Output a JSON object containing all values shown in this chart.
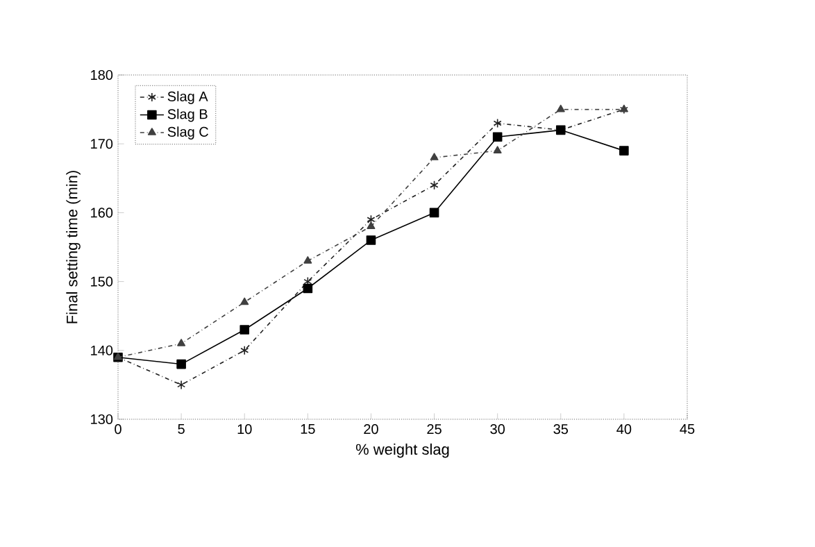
{
  "chart_data": {
    "type": "line",
    "xlabel": "% weight slag",
    "ylabel": "Final setting time (min)",
    "x": [
      0,
      5,
      10,
      15,
      20,
      25,
      30,
      35,
      40
    ],
    "xlim": [
      0,
      45
    ],
    "xticks": [
      0,
      5,
      10,
      15,
      20,
      25,
      30,
      35,
      40,
      45
    ],
    "ylim": [
      130,
      180
    ],
    "yticks": [
      130,
      140,
      150,
      160,
      170,
      180
    ],
    "grid": false,
    "legend": "top left",
    "series": [
      {
        "name": "Slag A",
        "color": "#202020",
        "marker": "cross",
        "line_style": "dashed",
        "values": [
          139,
          135,
          140,
          150,
          159,
          164,
          173,
          172,
          175
        ]
      },
      {
        "name": "Slag B",
        "color": "#000000",
        "marker": "square",
        "line_style": "solid",
        "values": [
          139,
          138,
          143,
          149,
          156,
          160,
          171,
          172,
          169
        ]
      },
      {
        "name": "Slag C",
        "color": "#404040",
        "marker": "triangle",
        "line_style": "dashed",
        "values": [
          139,
          141,
          147,
          153,
          158,
          168,
          169,
          175,
          175
        ]
      }
    ]
  }
}
